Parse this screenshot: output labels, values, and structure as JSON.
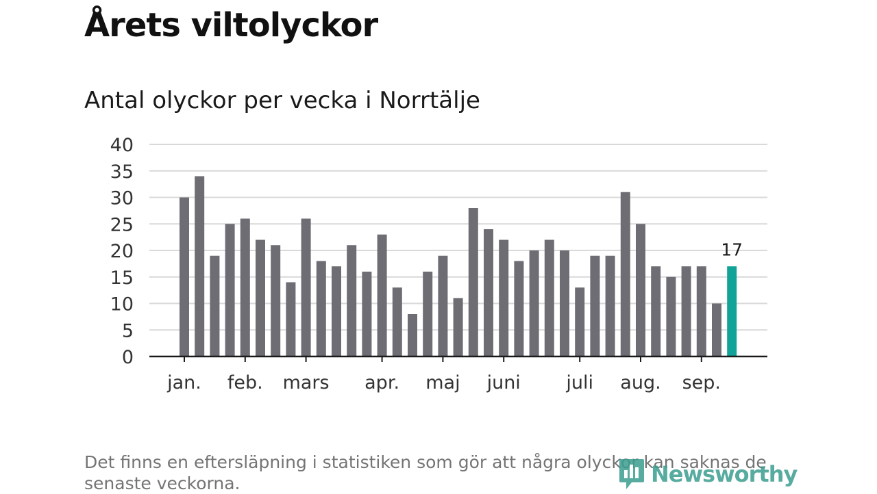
{
  "header": {
    "title": "Årets viltolyckor",
    "subtitle": "Antal olyckor per vecka i Norrtälje"
  },
  "footnote": "Det finns en eftersläpning i statistiken som gör att några olyckor kan saknas de senaste veckorna.",
  "logo": {
    "text": "Newsworthy",
    "icon": "newsworthy-logo-icon"
  },
  "colors": {
    "bar": "#6e6d73",
    "highlight": "#11a398",
    "grid": "#d9d9d9",
    "axis": "#1a1a1a"
  },
  "chart_data": {
    "type": "bar",
    "title": "Antal olyckor per vecka i Norrtälje",
    "xlabel": "",
    "ylabel": "",
    "ylim": [
      0,
      40
    ],
    "yticks": [
      0,
      5,
      10,
      15,
      20,
      25,
      30,
      35,
      40
    ],
    "grid": true,
    "x_tick_labels": [
      {
        "label": "jan.",
        "week_index": 0
      },
      {
        "label": "feb.",
        "week_index": 4
      },
      {
        "label": "mars",
        "week_index": 8
      },
      {
        "label": "apr.",
        "week_index": 13
      },
      {
        "label": "maj",
        "week_index": 17
      },
      {
        "label": "juni",
        "week_index": 21
      },
      {
        "label": "juli",
        "week_index": 26
      },
      {
        "label": "aug.",
        "week_index": 30
      },
      {
        "label": "sep.",
        "week_index": 34
      }
    ],
    "values": [
      30,
      34,
      19,
      25,
      26,
      22,
      21,
      14,
      26,
      18,
      17,
      21,
      16,
      23,
      13,
      8,
      16,
      19,
      11,
      28,
      24,
      22,
      18,
      20,
      22,
      20,
      13,
      19,
      19,
      31,
      25,
      17,
      15,
      17,
      17,
      10,
      17
    ],
    "highlight_index": 36,
    "highlight_label": "17"
  }
}
